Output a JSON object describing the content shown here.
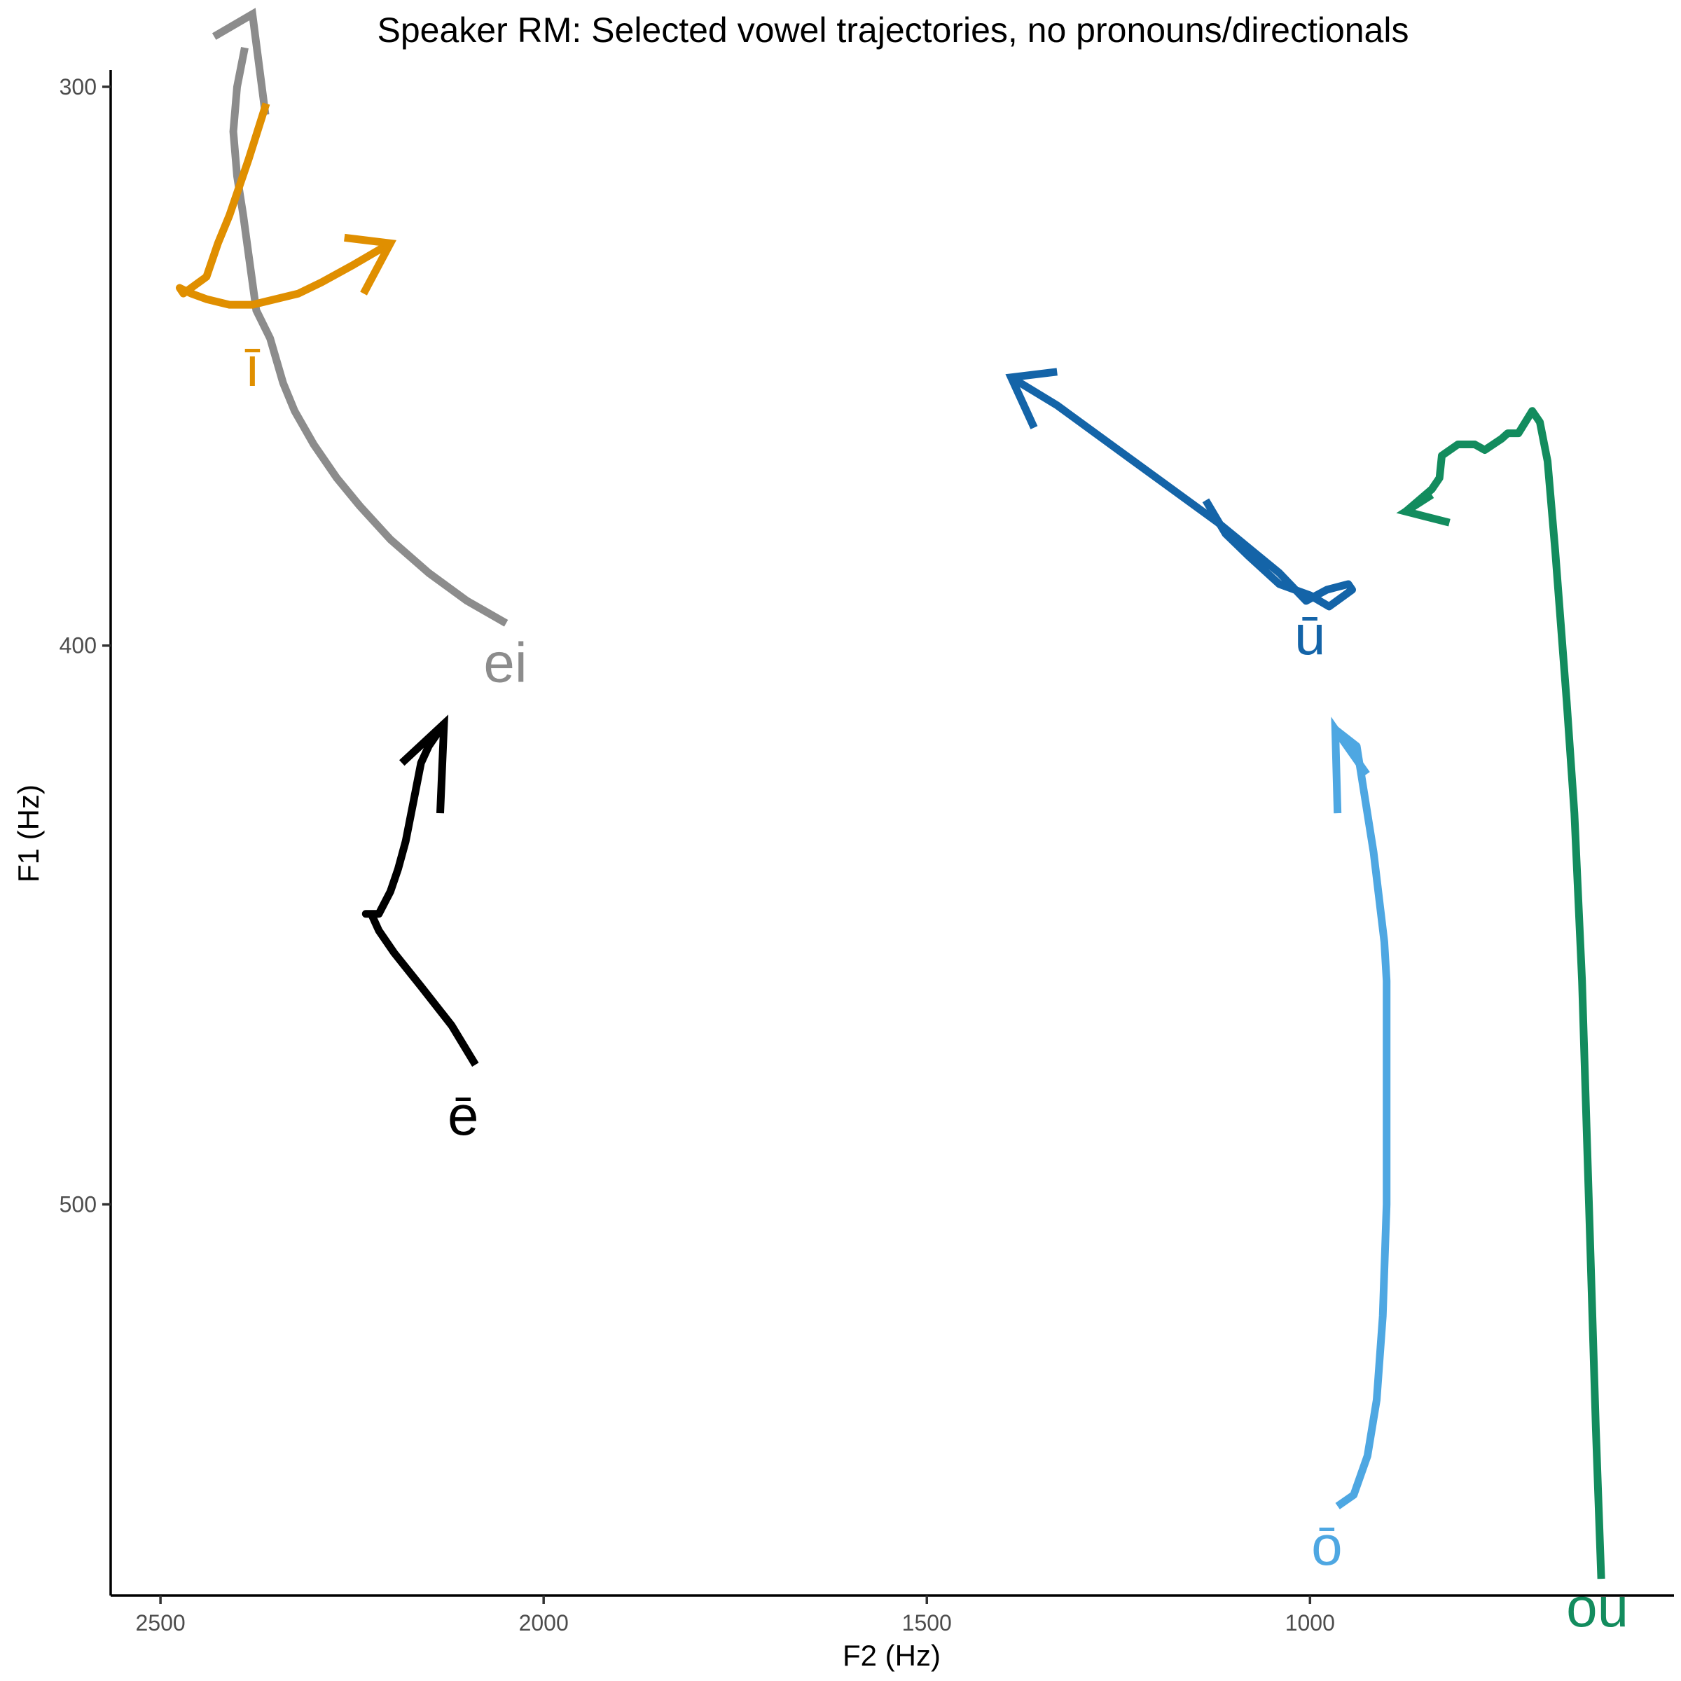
{
  "chart_data": {
    "type": "line",
    "title": "Speaker RM: Selected vowel trajectories, no pronouns/directionals",
    "xlabel": "F2 (Hz)",
    "ylabel": "F1 (Hz)",
    "x_reversed": true,
    "y_reversed": true,
    "xlim": [
      2565,
      525
    ],
    "ylim": [
      297,
      570
    ],
    "x_ticks": [
      2500,
      2000,
      1500,
      1000
    ],
    "y_ticks": [
      300,
      400,
      500
    ],
    "grid": false,
    "legend": "none",
    "series": [
      {
        "name": "ei",
        "color": "#8c8c8c",
        "points": [
          [
            2049,
            396
          ],
          [
            2100,
            392
          ],
          [
            2150,
            387
          ],
          [
            2200,
            381
          ],
          [
            2240,
            375
          ],
          [
            2270,
            370
          ],
          [
            2300,
            364
          ],
          [
            2325,
            358
          ],
          [
            2340,
            353
          ],
          [
            2357,
            345
          ],
          [
            2375,
            340
          ],
          [
            2385,
            330
          ],
          [
            2392,
            323
          ],
          [
            2400,
            316
          ],
          [
            2405,
            308
          ],
          [
            2400,
            300
          ],
          [
            2390,
            293
          ]
        ],
        "arrow_from": [
          2430,
          291
        ],
        "arrow_tip": [
          2380,
          287
        ],
        "arrow_to": [
          2363,
          305
        ],
        "label": "ei",
        "label_at": [
          2050,
          403
        ]
      },
      {
        "name": "ī",
        "color": "#e08f00",
        "points": [
          [
            2362,
            303
          ],
          [
            2385,
            313
          ],
          [
            2400,
            319
          ],
          [
            2410,
            323
          ],
          [
            2425,
            328
          ],
          [
            2440,
            334
          ],
          [
            2470,
            337
          ],
          [
            2475,
            336
          ],
          [
            2460,
            337
          ],
          [
            2440,
            338
          ],
          [
            2410,
            339
          ],
          [
            2380,
            339
          ],
          [
            2350,
            338
          ],
          [
            2320,
            337
          ],
          [
            2290,
            335
          ],
          [
            2250,
            332
          ],
          [
            2200,
            328
          ]
        ],
        "arrow_from": [
          2260,
          327
        ],
        "arrow_tip": [
          2200,
          328
        ],
        "arrow_to": [
          2235,
          337
        ],
        "label": "ī",
        "label_at": [
          2380,
          350
        ]
      },
      {
        "name": "ē",
        "color": "#000000",
        "points": [
          [
            2089,
            475
          ],
          [
            2120,
            468
          ],
          [
            2160,
            461
          ],
          [
            2195,
            455
          ],
          [
            2215,
            451
          ],
          [
            2225,
            448
          ],
          [
            2232,
            448
          ],
          [
            2215,
            448
          ],
          [
            2200,
            444
          ],
          [
            2190,
            440
          ],
          [
            2180,
            435
          ],
          [
            2170,
            428
          ],
          [
            2160,
            421
          ],
          [
            2150,
            418
          ],
          [
            2130,
            414
          ]
        ],
        "arrow_from": [
          2185,
          421
        ],
        "arrow_tip": [
          2130,
          414
        ],
        "arrow_to": [
          2135,
          430
        ],
        "label": "ē",
        "label_at": [
          2105,
          484
        ]
      },
      {
        "name": "ū",
        "color": "#1464a8",
        "points": [
          [
            1136,
            374
          ],
          [
            1110,
            380
          ],
          [
            1080,
            384
          ],
          [
            1040,
            389
          ],
          [
            1000,
            391
          ],
          [
            975,
            393
          ],
          [
            945,
            390
          ],
          [
            950,
            389
          ],
          [
            978,
            390
          ],
          [
            1005,
            392
          ],
          [
            1040,
            387
          ],
          [
            1120,
            378
          ],
          [
            1230,
            367
          ],
          [
            1330,
            357
          ],
          [
            1390,
            352
          ]
        ],
        "arrow_from": [
          1330,
          351
        ],
        "arrow_tip": [
          1390,
          352
        ],
        "arrow_to": [
          1360,
          361
        ],
        "label": "ū",
        "label_at": [
          1000,
          398
        ]
      },
      {
        "name": "ō",
        "color": "#4ea7e2",
        "points": [
          [
            964,
            554
          ],
          [
            943,
            552
          ],
          [
            925,
            545
          ],
          [
            913,
            535
          ],
          [
            905,
            520
          ],
          [
            900,
            500
          ],
          [
            900,
            480
          ],
          [
            900,
            460
          ],
          [
            903,
            453
          ],
          [
            917,
            437
          ],
          [
            939,
            418
          ],
          [
            967,
            415
          ]
        ],
        "arrow_from": [
          926,
          423
        ],
        "arrow_tip": [
          967,
          415
        ],
        "arrow_to": [
          964,
          430
        ],
        "label": "ō",
        "label_at": [
          978,
          561
        ]
      },
      {
        "name": "ou",
        "color": "#138c5e",
        "points": [
          [
            620,
            567
          ],
          [
            627,
            540
          ],
          [
            636,
            500
          ],
          [
            645,
            460
          ],
          [
            655,
            430
          ],
          [
            665,
            410
          ],
          [
            680,
            383
          ],
          [
            690,
            367
          ],
          [
            700,
            360
          ],
          [
            710,
            358
          ],
          [
            728,
            362
          ],
          [
            742,
            362
          ],
          [
            750,
            363
          ],
          [
            772,
            365
          ],
          [
            785,
            364
          ],
          [
            807,
            364
          ],
          [
            828,
            366
          ],
          [
            831,
            370
          ],
          [
            841,
            372
          ],
          [
            875,
            376
          ]
        ],
        "arrow_from": [
          818,
          378
        ],
        "arrow_tip": [
          875,
          376
        ],
        "arrow_to": [
          841,
          373
        ],
        "label": "ou",
        "label_at": [
          625,
          572
        ]
      }
    ]
  }
}
